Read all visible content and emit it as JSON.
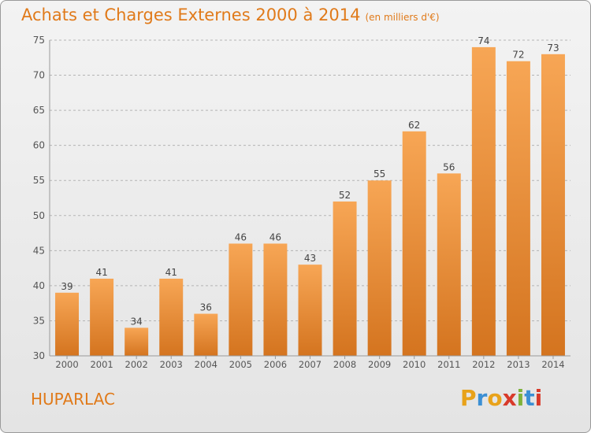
{
  "title": "Achats et Charges Externes 2000 à 2014",
  "subtitle": "(en milliers d'€)",
  "location": "HUPARLAC",
  "brand": {
    "letters": [
      "P",
      "r",
      "o",
      "x",
      "i",
      "t",
      "i"
    ],
    "colors": [
      "#e8a21a",
      "#3b8fd4",
      "#e8a21a",
      "#d83a2a",
      "#7fb23a",
      "#3b8fd4",
      "#d83a2a"
    ]
  },
  "colors": {
    "accent": "#e07a1a",
    "bar_top": "#f7a655",
    "bar_bottom": "#d4741f",
    "grid": "#b4b4b4",
    "axis_text": "#555555"
  },
  "chart_data": {
    "type": "bar",
    "categories": [
      "2000",
      "2001",
      "2002",
      "2003",
      "2004",
      "2005",
      "2006",
      "2007",
      "2008",
      "2009",
      "2010",
      "2011",
      "2012",
      "2013",
      "2014"
    ],
    "values": [
      39,
      41,
      34,
      41,
      36,
      46,
      46,
      43,
      52,
      55,
      62,
      56,
      74,
      72,
      73
    ],
    "yticks": [
      30,
      35,
      40,
      45,
      50,
      55,
      60,
      65,
      70,
      75
    ],
    "ylim": [
      30,
      75
    ],
    "grid": true,
    "legend": "none"
  }
}
